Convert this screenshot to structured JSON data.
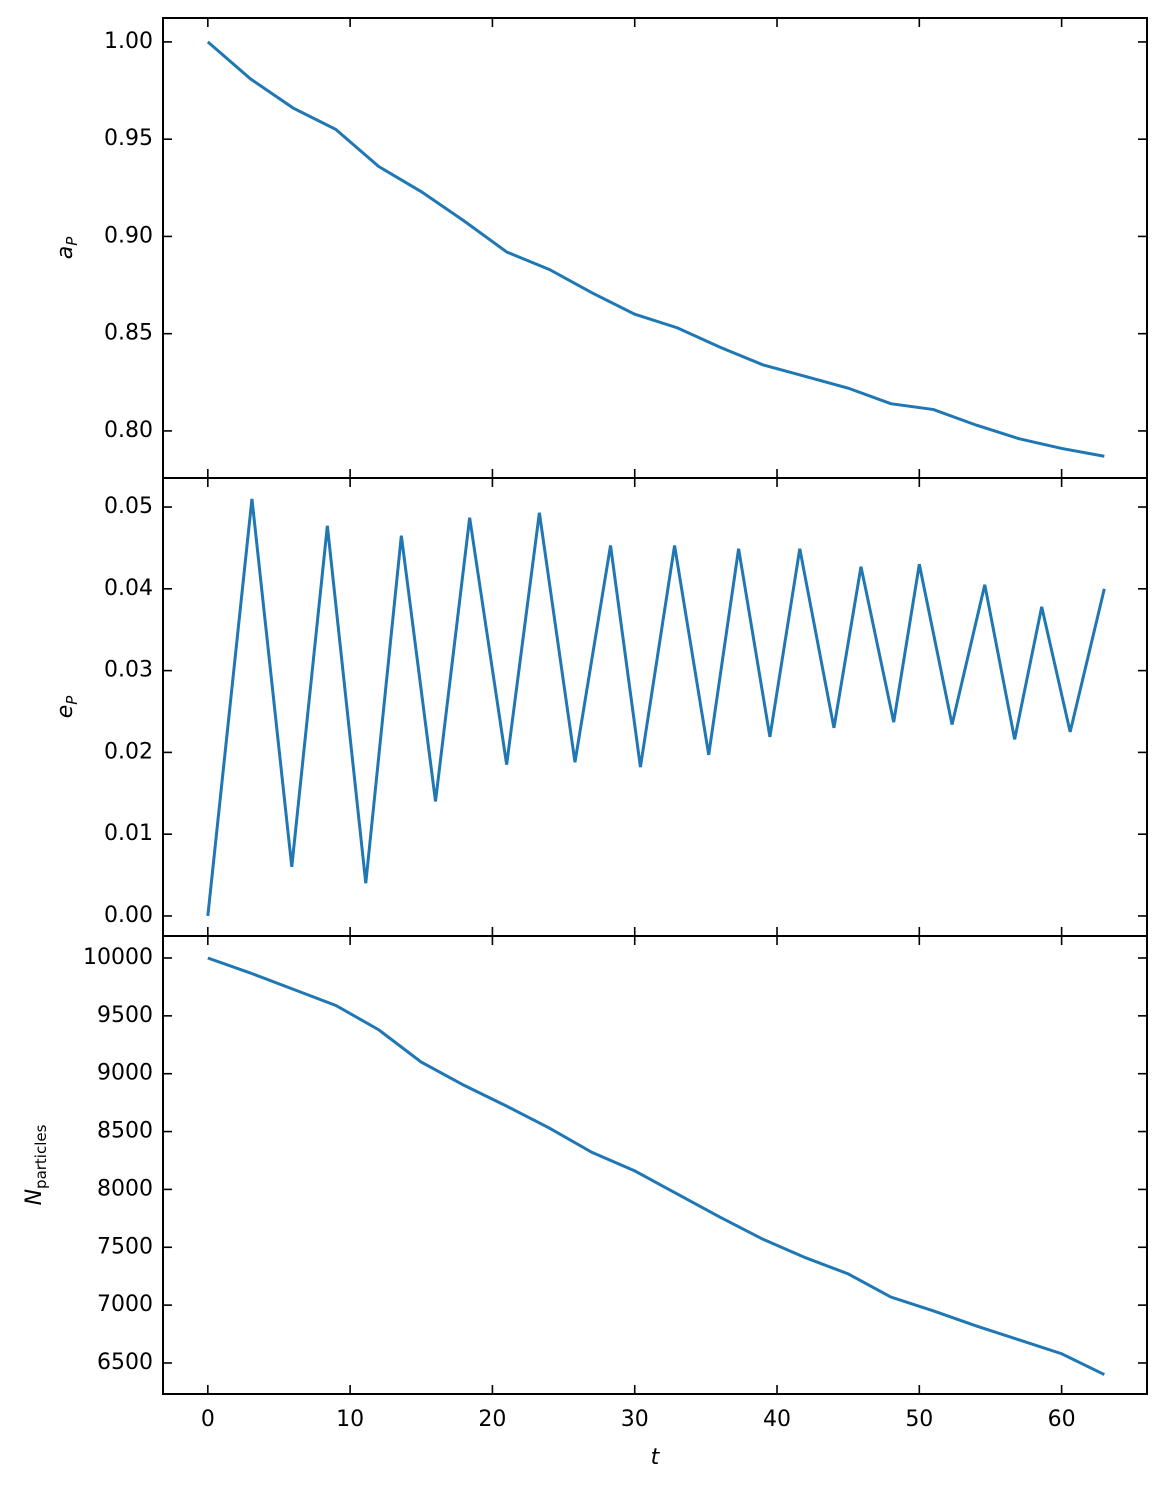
{
  "chart_data": [
    {
      "type": "line",
      "y_label": "a",
      "y_label_sub": "P",
      "color": "#1f77b4",
      "x": [
        0,
        3,
        6,
        9,
        12,
        15,
        18,
        21,
        24,
        27,
        30,
        33,
        36,
        39,
        42,
        45,
        48,
        51,
        54,
        57,
        60,
        63
      ],
      "values": [
        1.0,
        0.981,
        0.966,
        0.955,
        0.936,
        0.923,
        0.908,
        0.892,
        0.883,
        0.871,
        0.86,
        0.853,
        0.843,
        0.834,
        0.828,
        0.822,
        0.814,
        0.811,
        0.803,
        0.796,
        0.791,
        0.787
      ],
      "xlim": [
        -3.15,
        66.0
      ],
      "xticks": [
        0,
        10,
        20,
        30,
        40,
        50,
        60
      ],
      "ylim": [
        0.7758,
        1.0123
      ],
      "yticks": [
        {
          "value": 0.8,
          "label": "0.80"
        },
        0.85,
        {
          "value": 0.9,
          "label": "0.90"
        },
        0.95,
        {
          "value": 1.0,
          "label": "1.00"
        }
      ]
    },
    {
      "type": "line",
      "y_label": "e",
      "y_label_sub": "P",
      "color": "#1f77b4",
      "x": [
        0,
        3.1,
        5.9,
        8.4,
        11.1,
        13.6,
        16.0,
        18.4,
        21.0,
        23.3,
        25.8,
        28.3,
        30.4,
        32.8,
        35.2,
        37.3,
        39.5,
        41.6,
        44.0,
        45.9,
        48.2,
        50.0,
        52.3,
        54.6,
        56.7,
        58.6,
        60.6,
        63
      ],
      "values": [
        0.0,
        0.051,
        0.006,
        0.0477,
        0.004,
        0.0465,
        0.014,
        0.0487,
        0.0185,
        0.0493,
        0.0188,
        0.0453,
        0.0182,
        0.0453,
        0.0197,
        0.0449,
        0.0219,
        0.0449,
        0.023,
        0.0427,
        0.0237,
        0.043,
        0.0234,
        0.0405,
        0.0216,
        0.0378,
        0.0225,
        0.04
      ],
      "xlim": [
        -3.15,
        66.0
      ],
      "xticks": [
        0,
        10,
        20,
        30,
        40,
        50,
        60
      ],
      "ylim": [
        -0.00245,
        0.05355
      ],
      "yticks": [
        {
          "value": 0.0,
          "label": "0.00"
        },
        0.01,
        0.02,
        0.03,
        0.04,
        0.05
      ]
    },
    {
      "type": "line",
      "y_label": "N",
      "y_label_sub": "particles",
      "x_label": "t",
      "color": "#1f77b4",
      "x": [
        0,
        3,
        6,
        9,
        12,
        15,
        18,
        21,
        24,
        27,
        30,
        33,
        36,
        39,
        42,
        45,
        48,
        51,
        54,
        57,
        60,
        63
      ],
      "values": [
        10000,
        9870,
        9730,
        9590,
        9380,
        9100,
        8900,
        8720,
        8530,
        8320,
        8160,
        7960,
        7760,
        7570,
        7410,
        7270,
        7070,
        6950,
        6820,
        6700,
        6580,
        6400
      ],
      "xlim": [
        -3.15,
        66.0
      ],
      "xticks": [
        0,
        10,
        20,
        30,
        40,
        50,
        60
      ],
      "ylim": [
        6232,
        10190
      ],
      "yticks": [
        6500,
        7000,
        7500,
        8000,
        8500,
        9000,
        9500,
        10000
      ]
    }
  ]
}
